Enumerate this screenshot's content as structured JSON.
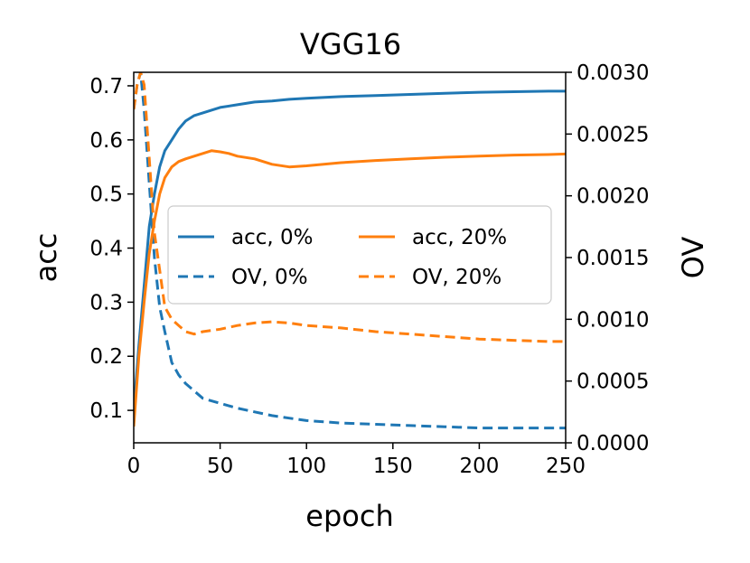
{
  "chart_data": {
    "type": "line",
    "title": "VGG16",
    "xlabel": "epoch",
    "ylabel_left": "acc",
    "ylabel_right": "OV",
    "xlim": [
      0,
      250
    ],
    "ylim_left": [
      0.04,
      0.725
    ],
    "ylim_right": [
      0.0,
      0.003
    ],
    "xticks": [
      "0",
      "50",
      "100",
      "150",
      "200",
      "250"
    ],
    "yticks_left": [
      "0.1",
      "0.2",
      "0.3",
      "0.4",
      "0.5",
      "0.6",
      "0.7"
    ],
    "yticks_right": [
      "0.0000",
      "0.0005",
      "0.0010",
      "0.0015",
      "0.0020",
      "0.0025",
      "0.0030"
    ],
    "grid": false,
    "legend_position": "center",
    "colors": {
      "blue": "#1f77b4",
      "orange": "#ff7f0e"
    },
    "series": [
      {
        "name": "acc, 0%",
        "axis": "left",
        "color": "#1f77b4",
        "style": "solid",
        "x": [
          0,
          3,
          6,
          9,
          12,
          15,
          18,
          22,
          26,
          30,
          35,
          40,
          45,
          50,
          60,
          70,
          80,
          90,
          100,
          120,
          140,
          160,
          180,
          200,
          220,
          240,
          250
        ],
        "y": [
          0.1,
          0.22,
          0.33,
          0.44,
          0.5,
          0.55,
          0.58,
          0.6,
          0.62,
          0.635,
          0.645,
          0.65,
          0.655,
          0.66,
          0.665,
          0.67,
          0.672,
          0.675,
          0.677,
          0.68,
          0.682,
          0.684,
          0.686,
          0.688,
          0.689,
          0.69,
          0.69
        ]
      },
      {
        "name": "OV, 0%",
        "axis": "right",
        "color": "#1f77b4",
        "style": "dashed",
        "x": [
          0,
          2,
          4,
          6,
          8,
          10,
          12,
          15,
          18,
          22,
          26,
          30,
          35,
          40,
          50,
          60,
          70,
          80,
          90,
          100,
          120,
          140,
          160,
          180,
          200,
          220,
          240,
          250
        ],
        "y": [
          0.0027,
          0.0029,
          0.003,
          0.0027,
          0.0023,
          0.0019,
          0.0015,
          0.0011,
          0.0009,
          0.00065,
          0.00055,
          0.00048,
          0.00042,
          0.00036,
          0.00032,
          0.00028,
          0.00025,
          0.00022,
          0.0002,
          0.00018,
          0.00016,
          0.00015,
          0.00014,
          0.00013,
          0.00012,
          0.00012,
          0.00012,
          0.00012
        ]
      },
      {
        "name": "acc, 20%",
        "axis": "left",
        "color": "#ff7f0e",
        "style": "solid",
        "x": [
          0,
          3,
          6,
          9,
          12,
          15,
          18,
          22,
          26,
          30,
          35,
          40,
          45,
          50,
          55,
          60,
          70,
          80,
          90,
          100,
          120,
          140,
          160,
          180,
          200,
          220,
          240,
          250
        ],
        "y": [
          0.07,
          0.2,
          0.3,
          0.39,
          0.45,
          0.5,
          0.53,
          0.55,
          0.56,
          0.565,
          0.57,
          0.575,
          0.58,
          0.578,
          0.575,
          0.57,
          0.565,
          0.555,
          0.55,
          0.552,
          0.558,
          0.562,
          0.565,
          0.568,
          0.57,
          0.572,
          0.573,
          0.574
        ]
      },
      {
        "name": "OV, 20%",
        "axis": "right",
        "color": "#ff7f0e",
        "style": "dashed",
        "x": [
          0,
          2,
          4,
          6,
          8,
          10,
          12,
          15,
          18,
          22,
          26,
          30,
          35,
          40,
          50,
          60,
          70,
          80,
          90,
          100,
          120,
          140,
          160,
          180,
          200,
          220,
          240,
          250
        ],
        "y": [
          0.0027,
          0.0029,
          0.003,
          0.0029,
          0.0025,
          0.0021,
          0.0017,
          0.0014,
          0.0011,
          0.001,
          0.00095,
          0.0009,
          0.00088,
          0.0009,
          0.00092,
          0.00095,
          0.00097,
          0.00098,
          0.00097,
          0.00095,
          0.00093,
          0.0009,
          0.00088,
          0.00086,
          0.00084,
          0.00083,
          0.00082,
          0.00082
        ]
      }
    ]
  }
}
